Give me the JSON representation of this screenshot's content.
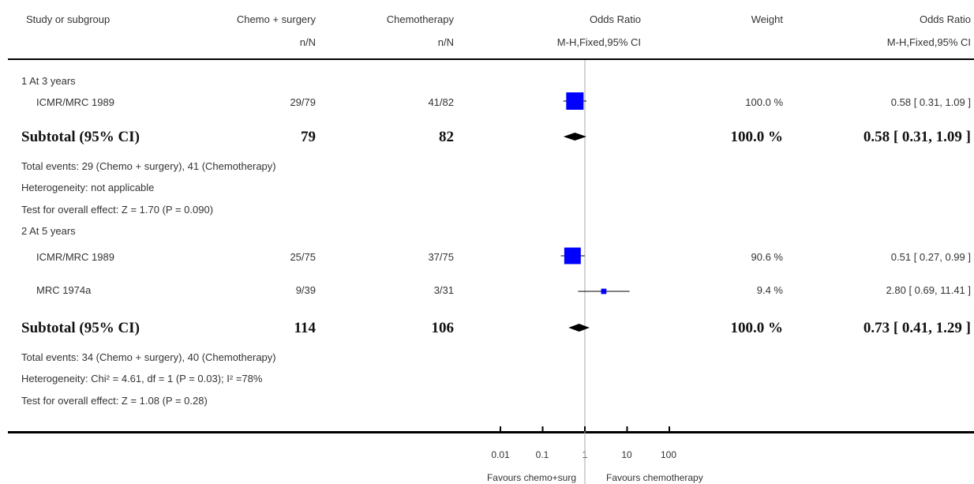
{
  "header": {
    "study": "Study or subgroup",
    "exp": "Chemo + surgery",
    "ctrl": "Chemotherapy",
    "or": "Odds Ratio",
    "weight": "Weight",
    "or2": "Odds Ratio",
    "exp_sub": "n/N",
    "ctrl_sub": "n/N",
    "or_sub": "M-H,Fixed,95% CI",
    "or2_sub": "M-H,Fixed,95% CI"
  },
  "groups": [
    {
      "label": "1 At 3 years",
      "studies": [
        {
          "name": "ICMR/MRC 1989",
          "exp": "29/79",
          "ctrl": "41/82",
          "weight": "100.0 %",
          "ci_text": "0.58 [ 0.31, 1.09 ]"
        }
      ],
      "subtotal": {
        "label": "Subtotal (95% CI)",
        "exp": "79",
        "ctrl": "82",
        "weight": "100.0 %",
        "ci_text": "0.58 [ 0.31, 1.09 ]"
      },
      "notes": [
        "Total events: 29 (Chemo + surgery), 41 (Chemotherapy)",
        "Heterogeneity: not applicable",
        "Test for overall effect: Z = 1.70 (P = 0.090)"
      ]
    },
    {
      "label": "2 At 5 years",
      "studies": [
        {
          "name": "ICMR/MRC 1989",
          "exp": "25/75",
          "ctrl": "37/75",
          "weight": "90.6 %",
          "ci_text": "0.51 [ 0.27, 0.99 ]"
        },
        {
          "name": "MRC 1974a",
          "exp": "9/39",
          "ctrl": "3/31",
          "weight": "9.4 %",
          "ci_text": "2.80 [ 0.69, 11.41 ]"
        }
      ],
      "subtotal": {
        "label": "Subtotal (95% CI)",
        "exp": "114",
        "ctrl": "106",
        "weight": "100.0 %",
        "ci_text": "0.73 [ 0.41, 1.29 ]"
      },
      "notes": [
        "Total events: 34 (Chemo + surgery), 40 (Chemotherapy)",
        "Heterogeneity: Chi² = 4.61, df = 1 (P = 0.03); I² =78%",
        "Test for overall effect: Z = 1.08 (P = 0.28)"
      ]
    }
  ],
  "axis": {
    "ticks": [
      "0.01",
      "0.1",
      "1",
      "10",
      "100"
    ],
    "favours_left": "Favours chemo+surg",
    "favours_right": "Favours chemotherapy"
  },
  "chart_data": {
    "type": "forest",
    "scale": "log",
    "xlim": [
      0.01,
      100
    ],
    "null_value": 1,
    "x_ticks": [
      0.01,
      0.1,
      1,
      10,
      100
    ],
    "studies": [
      {
        "group": "1 At 3 years",
        "name": "ICMR/MRC 1989",
        "or": 0.58,
        "lo": 0.31,
        "hi": 1.09,
        "weight": 100.0
      },
      {
        "group": "2 At 5 years",
        "name": "ICMR/MRC 1989",
        "or": 0.51,
        "lo": 0.27,
        "hi": 0.99,
        "weight": 90.6
      },
      {
        "group": "2 At 5 years",
        "name": "MRC 1974a",
        "or": 2.8,
        "lo": 0.69,
        "hi": 11.41,
        "weight": 9.4
      }
    ],
    "subtotals": [
      {
        "group": "1 At 3 years",
        "or": 0.58,
        "lo": 0.31,
        "hi": 1.09
      },
      {
        "group": "2 At 5 years",
        "or": 0.73,
        "lo": 0.41,
        "hi": 1.29
      }
    ],
    "colors": {
      "box": "#0000ff",
      "diamond": "#000000",
      "line": "#000000",
      "null_line": "#aaaaaa"
    }
  }
}
